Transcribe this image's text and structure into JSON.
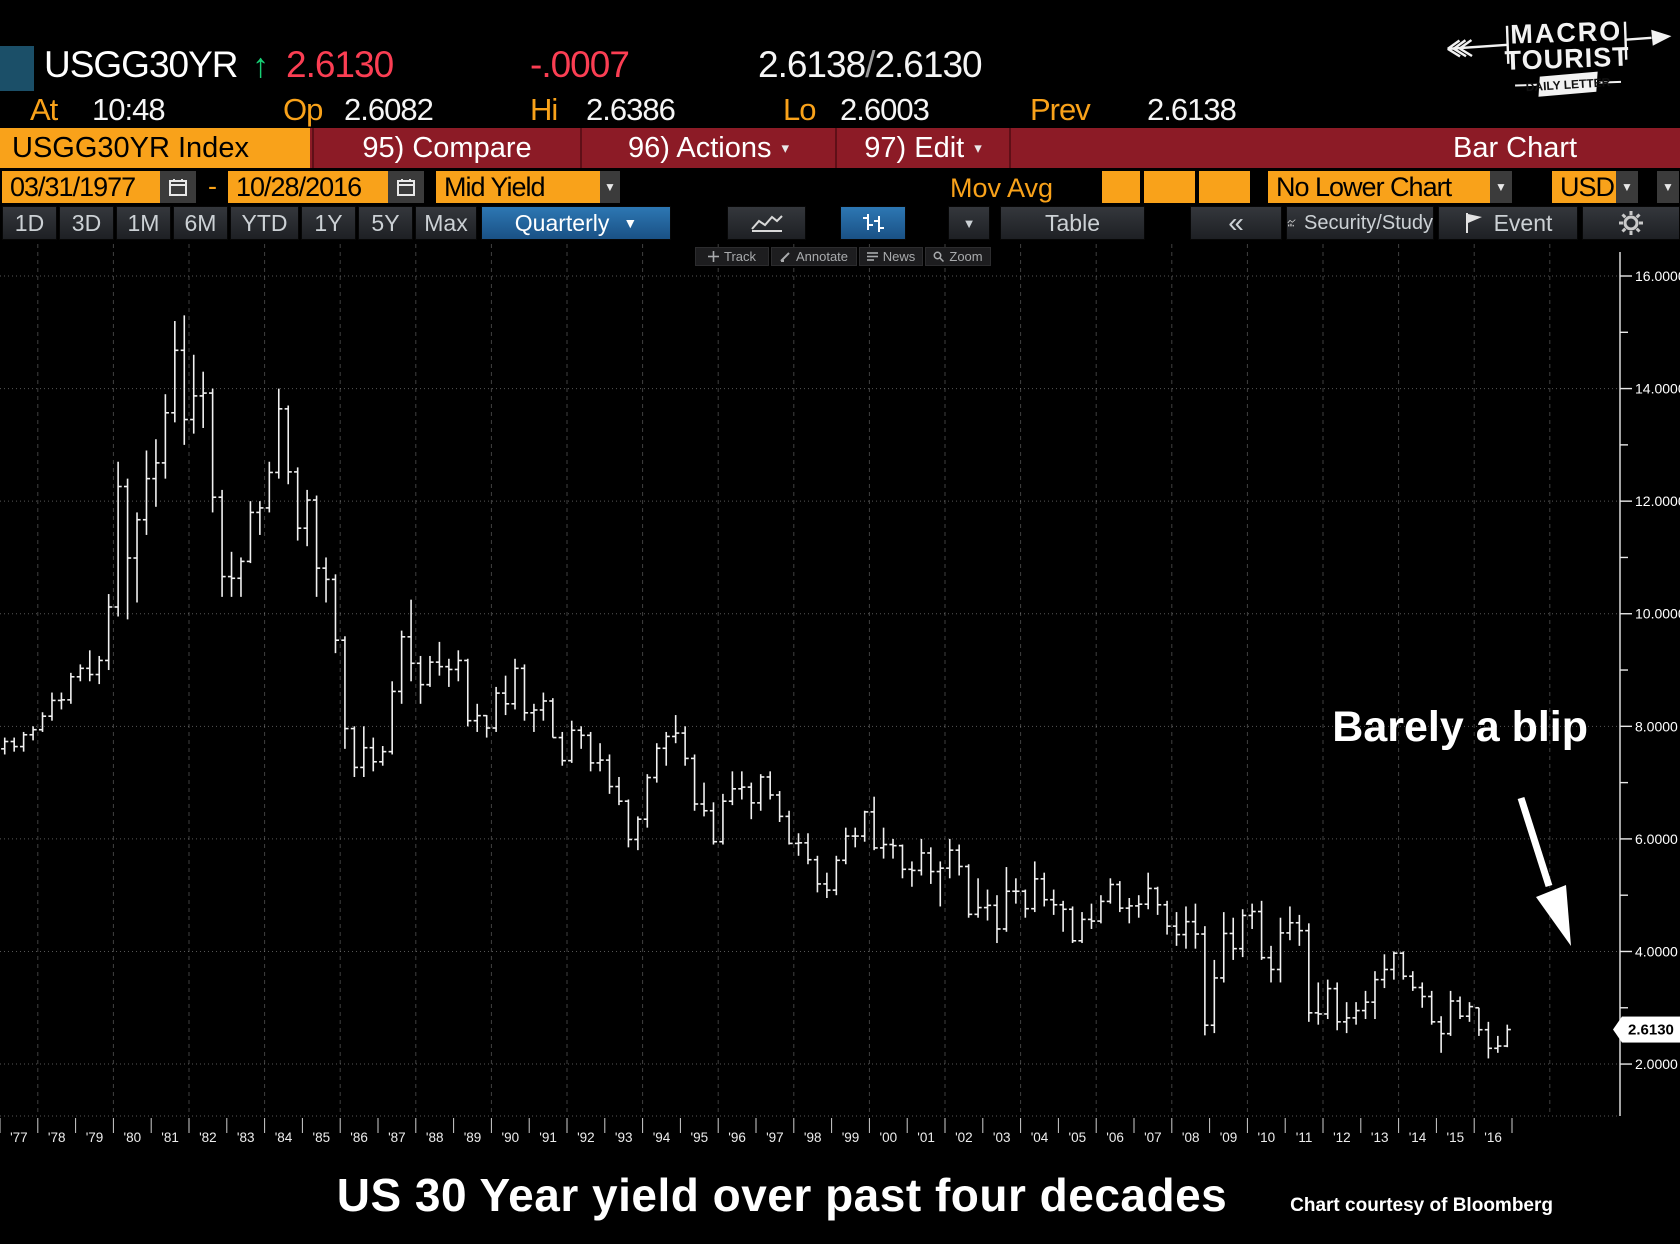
{
  "header": {
    "ticker": "USGG30YR",
    "direction_arrow": "↑",
    "last": "2.6130",
    "change": "-.0007",
    "bid": "2.6138",
    "slash": "/",
    "ask": "2.6130",
    "at_label": "At",
    "at_time": "10:48",
    "op_label": "Op",
    "op": "2.6082",
    "hi_label": "Hi",
    "hi": "2.6386",
    "lo_label": "Lo",
    "lo": "2.6003",
    "prev_label": "Prev",
    "prev": "2.6138"
  },
  "menu": {
    "security": "USGG30YR Index",
    "compare": "95) Compare",
    "actions": "96) Actions",
    "edit": "97) Edit",
    "caret": "▾",
    "right_label": "Bar Chart"
  },
  "controls": {
    "date_from": "03/31/1977",
    "date_dash": "-",
    "date_to": "10/28/2016",
    "field": "Mid Yield",
    "mov_avg_label": "Mov Avg",
    "lower_chart": "No Lower Chart",
    "currency": "USD",
    "caret": "▼"
  },
  "tabs": {
    "periods": [
      "1D",
      "3D",
      "1M",
      "6M",
      "YTD",
      "1Y",
      "5Y",
      "Max"
    ],
    "frequency": "Quarterly",
    "frequency_caret": "▼",
    "table_label": "Table",
    "collapse_label": "«",
    "security_study_label": "Security/Study",
    "event_label": "Event"
  },
  "minibar": {
    "track": "Track",
    "annotate": "Annotate",
    "news": "News",
    "zoom": "Zoom"
  },
  "annotation": {
    "text": "Barely a blip"
  },
  "axis_badge": "2.6130",
  "footer": {
    "title": "US 30 Year yield over past four decades",
    "credit": "Chart courtesy of Bloomberg"
  },
  "logo": {
    "line1": "MACRO",
    "line2": "TOURIST",
    "line3": "DAILY LETTER"
  },
  "chart_data": {
    "type": "bar",
    "subtype": "ohlc-quarterly",
    "title": "US 30 Year yield over past four decades",
    "security": "USGG30YR Index (Mid Yield)",
    "frequency": "Quarterly",
    "date_range": [
      "03/31/1977",
      "10/28/2016"
    ],
    "ylim": [
      1.3,
      16.6
    ],
    "y_ticks": [
      "16.0000",
      "14.0000",
      "12.0000",
      "10.0000",
      "8.0000",
      "6.0000",
      "4.0000",
      "2.0000"
    ],
    "y_tick_values": [
      16,
      14,
      12,
      10,
      8,
      6,
      4,
      2
    ],
    "y_minor_ticks": [
      15,
      13,
      11,
      9,
      7,
      5,
      3
    ],
    "x_labels": [
      "'77",
      "'78",
      "'79",
      "'80",
      "'81",
      "'82",
      "'83",
      "'84",
      "'85",
      "'86",
      "'87",
      "'88",
      "'89",
      "'90",
      "'91",
      "'92",
      "'93",
      "'94",
      "'95",
      "'96",
      "'97",
      "'98",
      "'99",
      "'00",
      "'01",
      "'02",
      "'03",
      "'04",
      "'05",
      "'06",
      "'07",
      "'08",
      "'09",
      "'10",
      "'11",
      "'12",
      "'13",
      "'14",
      "'15",
      "'16"
    ],
    "grid": "dotted-horizontal, dashed-vertical-every-2-years",
    "last_price": 2.613,
    "first_open": 7.6,
    "bars_format": [
      "high",
      "low",
      "close"
    ],
    "bars": [
      [
        7.8,
        7.5,
        7.73
      ],
      [
        7.8,
        7.55,
        7.64
      ],
      [
        7.9,
        7.55,
        7.85
      ],
      [
        8.0,
        7.75,
        7.94
      ],
      [
        8.25,
        7.9,
        8.18
      ],
      [
        8.6,
        8.1,
        8.46
      ],
      [
        8.6,
        8.3,
        8.47
      ],
      [
        8.95,
        8.4,
        8.88
      ],
      [
        9.1,
        8.8,
        9.03
      ],
      [
        9.35,
        8.8,
        8.92
      ],
      [
        9.25,
        8.75,
        9.17
      ],
      [
        10.35,
        9.0,
        10.12
      ],
      [
        12.7,
        9.95,
        12.26
      ],
      [
        12.4,
        9.9,
        10.99
      ],
      [
        11.8,
        10.2,
        11.67
      ],
      [
        12.9,
        11.4,
        12.4
      ],
      [
        13.1,
        11.9,
        12.68
      ],
      [
        13.9,
        12.4,
        13.57
      ],
      [
        15.2,
        13.4,
        14.68
      ],
      [
        15.3,
        13.0,
        13.45
      ],
      [
        14.6,
        13.2,
        13.87
      ],
      [
        14.3,
        13.3,
        13.92
      ],
      [
        14.0,
        11.8,
        12.07
      ],
      [
        12.2,
        10.3,
        10.66
      ],
      [
        11.1,
        10.3,
        10.63
      ],
      [
        11.0,
        10.3,
        10.93
      ],
      [
        12.0,
        10.9,
        11.8
      ],
      [
        12.0,
        11.4,
        11.88
      ],
      [
        12.7,
        11.8,
        12.51
      ],
      [
        14.0,
        12.4,
        13.64
      ],
      [
        13.7,
        12.3,
        12.52
      ],
      [
        12.6,
        11.3,
        11.52
      ],
      [
        12.2,
        11.2,
        12.02
      ],
      [
        12.1,
        10.3,
        10.81
      ],
      [
        11.0,
        10.2,
        10.61
      ],
      [
        10.7,
        9.3,
        9.53
      ],
      [
        9.6,
        7.6,
        7.96
      ],
      [
        8.0,
        7.1,
        7.27
      ],
      [
        8.0,
        7.1,
        7.62
      ],
      [
        7.8,
        7.2,
        7.37
      ],
      [
        7.65,
        7.3,
        7.55
      ],
      [
        8.8,
        7.5,
        8.62
      ],
      [
        9.7,
        8.4,
        9.59
      ],
      [
        10.25,
        8.8,
        9.12
      ],
      [
        9.25,
        8.4,
        8.74
      ],
      [
        9.25,
        8.7,
        9.14
      ],
      [
        9.5,
        8.9,
        9.06
      ],
      [
        9.2,
        8.7,
        9.01
      ],
      [
        9.35,
        8.8,
        9.17
      ],
      [
        9.2,
        8.0,
        8.1
      ],
      [
        8.4,
        7.9,
        8.19
      ],
      [
        8.2,
        7.8,
        7.97
      ],
      [
        8.7,
        7.9,
        8.59
      ],
      [
        8.9,
        8.2,
        8.4
      ],
      [
        9.2,
        8.3,
        9.03
      ],
      [
        9.1,
        8.1,
        8.24
      ],
      [
        8.4,
        7.9,
        8.29
      ],
      [
        8.6,
        8.1,
        8.45
      ],
      [
        8.5,
        7.8,
        7.8
      ],
      [
        7.9,
        7.3,
        7.39
      ],
      [
        8.1,
        7.35,
        7.93
      ],
      [
        8.0,
        7.6,
        7.84
      ],
      [
        7.9,
        7.2,
        7.35
      ],
      [
        7.7,
        7.2,
        7.4
      ],
      [
        7.5,
        6.8,
        6.93
      ],
      [
        7.1,
        6.6,
        6.67
      ],
      [
        6.7,
        5.85,
        5.99
      ],
      [
        6.4,
        5.8,
        6.35
      ],
      [
        7.15,
        6.2,
        7.09
      ],
      [
        7.7,
        7.0,
        7.61
      ],
      [
        7.9,
        7.3,
        7.82
      ],
      [
        8.2,
        7.7,
        7.88
      ],
      [
        8.0,
        7.3,
        7.43
      ],
      [
        7.5,
        6.5,
        6.62
      ],
      [
        7.0,
        6.4,
        6.5
      ],
      [
        6.65,
        5.9,
        5.95
      ],
      [
        6.8,
        5.9,
        6.67
      ],
      [
        7.2,
        6.6,
        6.89
      ],
      [
        7.2,
        6.7,
        6.92
      ],
      [
        7.0,
        6.35,
        6.64
      ],
      [
        7.15,
        6.5,
        7.1
      ],
      [
        7.2,
        6.7,
        6.78
      ],
      [
        6.85,
        6.3,
        6.4
      ],
      [
        6.5,
        5.9,
        5.92
      ],
      [
        6.1,
        5.7,
        5.93
      ],
      [
        6.1,
        5.55,
        5.63
      ],
      [
        5.7,
        5.05,
        5.2
      ],
      [
        5.4,
        4.95,
        5.09
      ],
      [
        5.7,
        5.0,
        5.62
      ],
      [
        6.2,
        5.55,
        6.05
      ],
      [
        6.2,
        5.85,
        6.05
      ],
      [
        6.5,
        5.95,
        6.48
      ],
      [
        6.75,
        5.8,
        5.84
      ],
      [
        6.2,
        5.65,
        5.9
      ],
      [
        6.0,
        5.65,
        5.88
      ],
      [
        5.9,
        5.3,
        5.46
      ],
      [
        5.6,
        5.15,
        5.44
      ],
      [
        6.0,
        5.35,
        5.75
      ],
      [
        5.85,
        5.2,
        5.42
      ],
      [
        5.6,
        4.8,
        5.48
      ],
      [
        6.0,
        5.3,
        5.8
      ],
      [
        5.9,
        5.35,
        5.51
      ],
      [
        5.55,
        4.6,
        4.66
      ],
      [
        5.3,
        4.6,
        4.78
      ],
      [
        5.1,
        4.55,
        4.82
      ],
      [
        5.0,
        4.15,
        4.4
      ],
      [
        5.5,
        4.35,
        5.07
      ],
      [
        5.3,
        4.85,
        5.07
      ],
      [
        5.1,
        4.6,
        4.76
      ],
      [
        5.6,
        4.7,
        5.29
      ],
      [
        5.4,
        4.8,
        4.92
      ],
      [
        5.1,
        4.65,
        4.83
      ],
      [
        4.9,
        4.35,
        4.75
      ],
      [
        4.8,
        4.15,
        4.19
      ],
      [
        4.7,
        4.15,
        4.57
      ],
      [
        4.85,
        4.4,
        4.54
      ],
      [
        5.0,
        4.5,
        4.89
      ],
      [
        5.3,
        4.85,
        5.19
      ],
      [
        5.25,
        4.7,
        4.77
      ],
      [
        4.95,
        4.5,
        4.81
      ],
      [
        5.0,
        4.6,
        4.84
      ],
      [
        5.4,
        4.75,
        5.12
      ],
      [
        5.15,
        4.65,
        4.83
      ],
      [
        4.9,
        4.3,
        4.45
      ],
      [
        4.7,
        4.1,
        4.3
      ],
      [
        4.8,
        4.05,
        4.53
      ],
      [
        4.85,
        4.05,
        4.31
      ],
      [
        4.45,
        2.51,
        2.69
      ],
      [
        3.85,
        2.55,
        3.53
      ],
      [
        4.7,
        3.45,
        4.32
      ],
      [
        4.6,
        3.85,
        4.05
      ],
      [
        4.75,
        3.9,
        4.64
      ],
      [
        4.85,
        4.4,
        4.71
      ],
      [
        4.9,
        3.85,
        3.89
      ],
      [
        4.1,
        3.45,
        3.68
      ],
      [
        4.6,
        3.45,
        4.33
      ],
      [
        4.8,
        4.2,
        4.51
      ],
      [
        4.65,
        4.1,
        4.37
      ],
      [
        4.5,
        2.75,
        2.91
      ],
      [
        3.45,
        2.7,
        2.89
      ],
      [
        3.5,
        2.8,
        3.34
      ],
      [
        3.45,
        2.6,
        2.75
      ],
      [
        3.1,
        2.55,
        2.82
      ],
      [
        3.1,
        2.7,
        2.95
      ],
      [
        3.3,
        2.8,
        3.1
      ],
      [
        3.65,
        2.8,
        3.5
      ],
      [
        3.95,
        3.35,
        3.68
      ],
      [
        4.0,
        3.5,
        3.97
      ],
      [
        4.0,
        3.5,
        3.56
      ],
      [
        3.65,
        3.3,
        3.36
      ],
      [
        3.45,
        3.0,
        3.2
      ],
      [
        3.3,
        2.7,
        2.75
      ],
      [
        2.85,
        2.2,
        2.54
      ],
      [
        3.3,
        2.5,
        3.12
      ],
      [
        3.2,
        2.8,
        2.85
      ],
      [
        3.1,
        2.75,
        3.02
      ],
      [
        3.0,
        2.5,
        2.61
      ],
      [
        2.75,
        2.1,
        2.28
      ],
      [
        2.5,
        2.2,
        2.32
      ],
      [
        2.7,
        2.3,
        2.613
      ]
    ]
  }
}
